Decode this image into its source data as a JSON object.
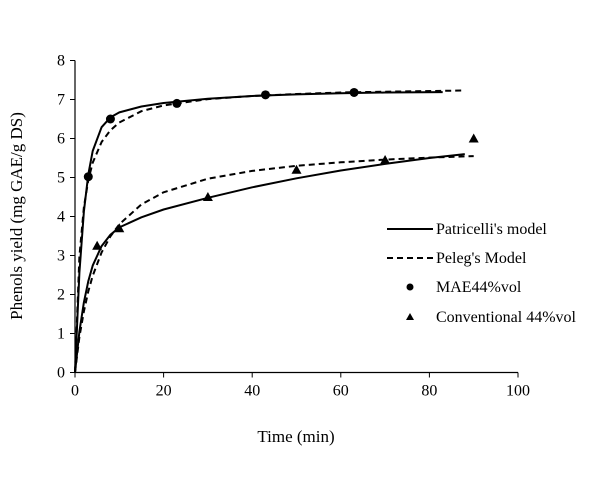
{
  "chart_data": {
    "type": "scatter",
    "xlabel": "Time (min)",
    "ylabel": "Phenols yield (mg GAE/g DS)",
    "xlim": [
      0,
      100
    ],
    "ylim": [
      0,
      8
    ],
    "xticks": [
      "0",
      "20",
      "40",
      "60",
      "80",
      "100"
    ],
    "yticks": [
      "0",
      "1",
      "2",
      "3",
      "4",
      "5",
      "6",
      "7",
      "8"
    ],
    "grid": false,
    "legend_position": "right",
    "legend": {
      "patricelli": "Patricelli's model",
      "peleg": "Peleg's Model",
      "mae": "MAE44%vol",
      "conv": "Conventional 44%vol"
    },
    "points": [
      {
        "name": "MAE44%vol",
        "marker": "circle",
        "x": [
          3,
          8,
          23,
          43,
          63
        ],
        "y": [
          5.02,
          6.5,
          6.9,
          7.12,
          7.18
        ]
      },
      {
        "name": "Conventional 44%vol",
        "marker": "triangle",
        "x": [
          5,
          10,
          30,
          50,
          70,
          90
        ],
        "y": [
          3.25,
          3.7,
          4.5,
          5.2,
          5.45,
          6.0
        ]
      }
    ],
    "curves": [
      {
        "name": "Patricelli's model",
        "style": "solid",
        "x": [
          0,
          1,
          2,
          3,
          4,
          6,
          8,
          10,
          15,
          20,
          30,
          40,
          50,
          60,
          70,
          83
        ],
        "y": [
          0,
          2.56,
          4.13,
          5.08,
          5.68,
          6.29,
          6.54,
          6.67,
          6.82,
          6.91,
          7.02,
          7.09,
          7.13,
          7.16,
          7.18,
          7.19
        ]
      },
      {
        "name": "Peleg's Model",
        "style": "dashed",
        "x": [
          0,
          1,
          2,
          3,
          4,
          6,
          8,
          10,
          15,
          20,
          30,
          40,
          50,
          60,
          70,
          88
        ],
        "y": [
          0,
          2.98,
          4.24,
          4.93,
          5.38,
          5.91,
          6.21,
          6.41,
          6.7,
          6.85,
          7.01,
          7.09,
          7.14,
          7.18,
          7.2,
          7.23
        ]
      },
      {
        "name": "Patricelli's model",
        "style": "solid",
        "x": [
          0,
          1,
          2,
          3,
          4,
          6,
          8,
          10,
          15,
          20,
          30,
          40,
          50,
          60,
          70,
          80,
          88
        ],
        "y": [
          0,
          1.05,
          1.8,
          2.34,
          2.74,
          3.24,
          3.53,
          3.72,
          3.98,
          4.18,
          4.48,
          4.75,
          4.98,
          5.18,
          5.35,
          5.5,
          5.6
        ]
      },
      {
        "name": "Peleg's Model",
        "style": "dashed",
        "x": [
          0,
          1,
          2,
          3,
          4,
          6,
          8,
          10,
          15,
          20,
          30,
          40,
          50,
          60,
          70,
          80,
          90
        ],
        "y": [
          0,
          0.91,
          1.57,
          2.08,
          2.48,
          3.08,
          3.49,
          3.8,
          4.31,
          4.62,
          4.97,
          5.17,
          5.3,
          5.39,
          5.46,
          5.51,
          5.55
        ]
      }
    ]
  }
}
